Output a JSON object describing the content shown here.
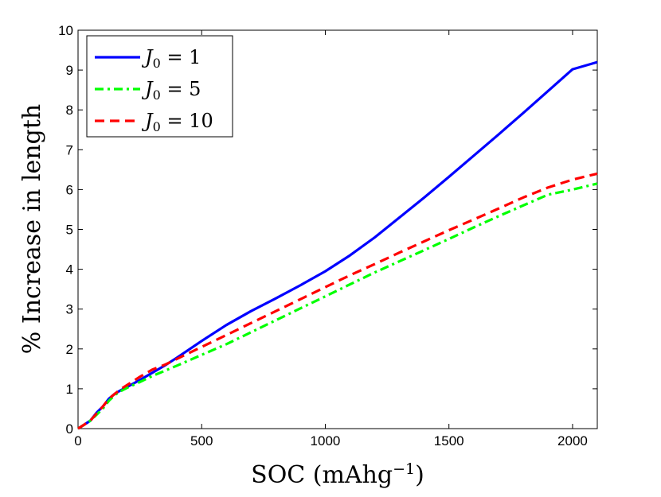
{
  "chart_data": {
    "type": "line",
    "xlabel": "SOC (mAhg",
    "xlabel_sup": "−1",
    "xlabel_close": ")",
    "ylabel": "% Increase in length",
    "xlim": [
      0,
      2100
    ],
    "ylim": [
      0,
      10
    ],
    "xticks": [
      0,
      500,
      1000,
      1500,
      2000
    ],
    "yticks": [
      0,
      1,
      2,
      3,
      4,
      5,
      6,
      7,
      8,
      9,
      10
    ],
    "grid": false,
    "legend_position": "top-left",
    "series": [
      {
        "name_var": "J",
        "name_sub": "0",
        "name_rest": " = 1",
        "color": "#0000ff",
        "style": "solid",
        "x": [
          0,
          25,
          50,
          75,
          100,
          125,
          150,
          175,
          200,
          250,
          300,
          350,
          400,
          500,
          600,
          700,
          800,
          900,
          1000,
          1100,
          1200,
          1300,
          1400,
          1500,
          1600,
          1700,
          1800,
          1900,
          2000,
          2100
        ],
        "y": [
          0,
          0.1,
          0.2,
          0.4,
          0.55,
          0.75,
          0.88,
          0.97,
          1.05,
          1.22,
          1.4,
          1.58,
          1.78,
          2.2,
          2.6,
          2.95,
          3.27,
          3.6,
          3.95,
          4.35,
          4.8,
          5.3,
          5.8,
          6.32,
          6.85,
          7.38,
          7.92,
          8.47,
          9.02,
          9.2
        ]
      },
      {
        "name_var": "J",
        "name_sub": "0",
        "name_rest": " = 5",
        "color": "#00ff00",
        "style": "dashdot",
        "x": [
          0,
          25,
          50,
          75,
          100,
          125,
          150,
          175,
          200,
          250,
          300,
          350,
          400,
          500,
          600,
          700,
          800,
          900,
          1000,
          1100,
          1200,
          1300,
          1400,
          1500,
          1600,
          1700,
          1800,
          1900,
          2000,
          2100
        ],
        "y": [
          0,
          0.1,
          0.2,
          0.35,
          0.5,
          0.7,
          0.85,
          0.95,
          1.03,
          1.17,
          1.32,
          1.45,
          1.58,
          1.85,
          2.12,
          2.42,
          2.72,
          3.02,
          3.32,
          3.62,
          3.92,
          4.2,
          4.48,
          4.76,
          5.05,
          5.33,
          5.6,
          5.87,
          6.0,
          6.15
        ]
      },
      {
        "name_var": "J",
        "name_sub": "0",
        "name_rest": " = 10",
        "color": "#ff0000",
        "style": "dashed",
        "x": [
          0,
          25,
          50,
          75,
          100,
          125,
          150,
          175,
          200,
          250,
          300,
          350,
          400,
          500,
          600,
          700,
          800,
          900,
          1000,
          1100,
          1200,
          1300,
          1400,
          1500,
          1600,
          1700,
          1800,
          1900,
          2000,
          2100
        ],
        "y": [
          0,
          0.1,
          0.2,
          0.38,
          0.55,
          0.75,
          0.88,
          1.0,
          1.1,
          1.3,
          1.48,
          1.6,
          1.75,
          2.05,
          2.35,
          2.65,
          2.95,
          3.25,
          3.55,
          3.85,
          4.13,
          4.42,
          4.7,
          4.98,
          5.25,
          5.52,
          5.8,
          6.05,
          6.25,
          6.4
        ]
      }
    ]
  }
}
